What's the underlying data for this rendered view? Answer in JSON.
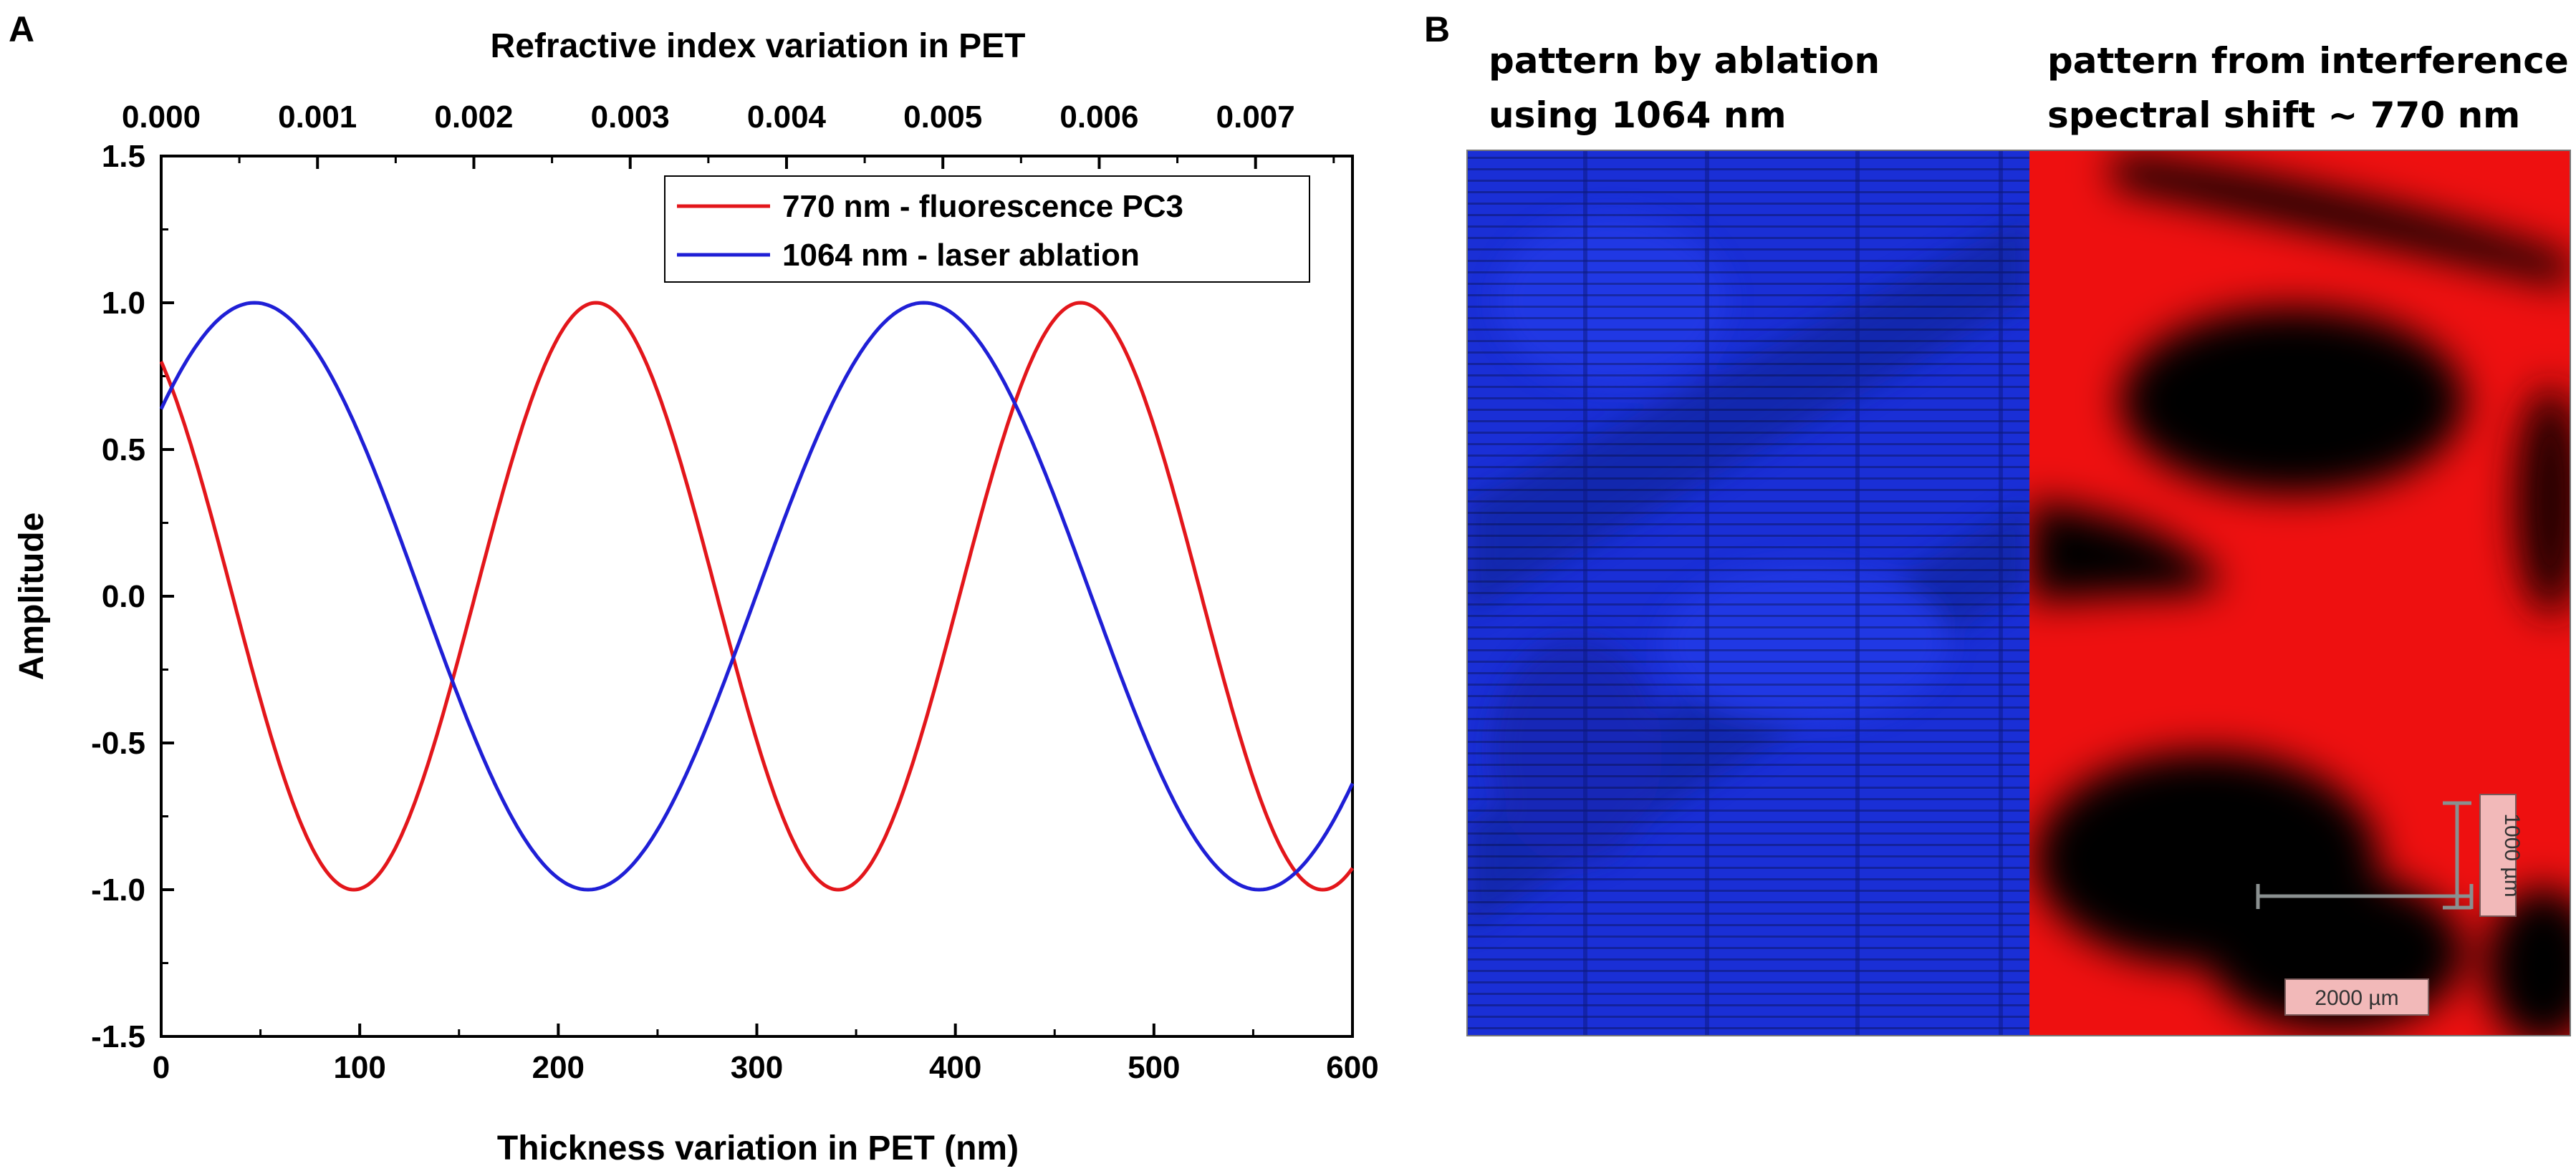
{
  "panel_a": {
    "letter": "A"
  },
  "panel_b": {
    "letter": "B",
    "left_caption": [
      "pattern by ablation",
      "using 1064 nm"
    ],
    "right_caption": [
      "pattern from interference",
      "spectral shift  ~ 770 nm"
    ],
    "scale_vertical": "1000 µm",
    "scale_horizontal": "2000 µm",
    "colors": {
      "blue": "#1a2fd6",
      "red": "#ee1010"
    }
  },
  "chart_data": {
    "type": "line",
    "title": "",
    "xlabel": "Thickness variation in PET (nm)",
    "ylabel": "Amplitude",
    "top_xlabel": "Refractive index variation in PET",
    "xlim": [
      0,
      600
    ],
    "ylim": [
      -1.5,
      1.5
    ],
    "top_xlim": [
      0,
      0.00762
    ],
    "x_ticks": [
      "0",
      "100",
      "200",
      "300",
      "400",
      "500",
      "600"
    ],
    "y_ticks": [
      "1.5",
      "1.0",
      "0.5",
      "0.0",
      "-0.5",
      "-1.0",
      "-1.5"
    ],
    "top_ticks": [
      "0.000",
      "0.001",
      "0.002",
      "0.003",
      "0.004",
      "0.005",
      "0.006",
      "0.007"
    ],
    "legend_position": "top-right",
    "series": [
      {
        "name": "770 nm - fluorescence PC3",
        "color": "#e3161b",
        "peaks_x": [
          219,
          463
        ],
        "troughs_x": [
          97,
          341,
          585
        ],
        "start_y": 0.8
      },
      {
        "name": "1064 nm - laser ablation",
        "color": "#1f1fd6",
        "peaks_x": [
          47,
          384
        ],
        "troughs_x": [
          215,
          553
        ],
        "start_y": 0.67
      }
    ]
  }
}
